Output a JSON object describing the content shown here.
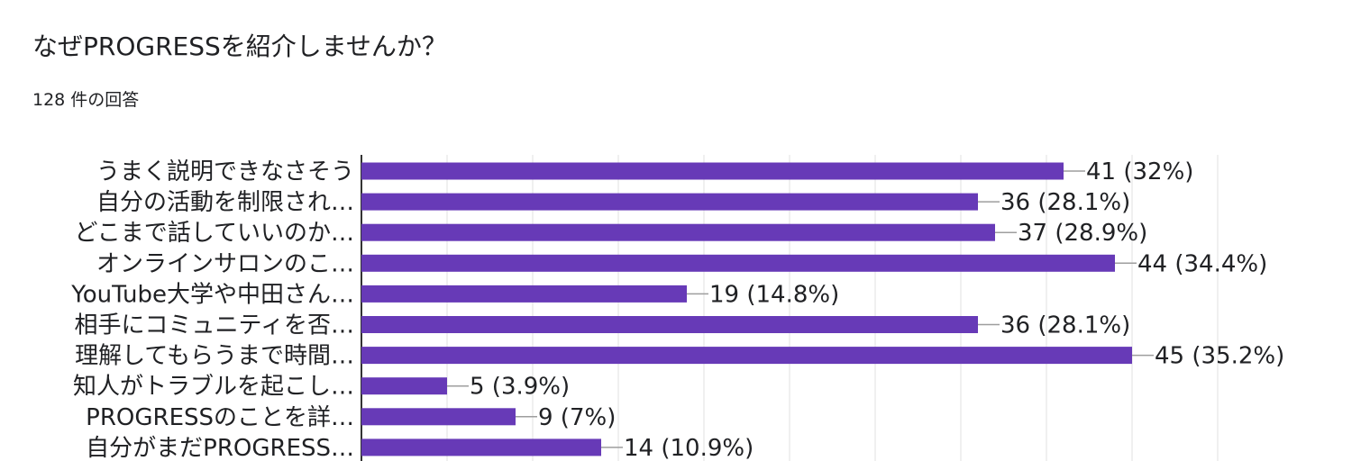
{
  "question": {
    "title": "なぜPROGRESSを紹介しませんか？",
    "response_count": "128 件の回答"
  },
  "colors": {
    "bar": "#673ab7",
    "grid": "#e0e0e0",
    "axis": "#333333",
    "leader": "#9e9e9e"
  },
  "chart_data": {
    "type": "bar",
    "orientation": "horizontal",
    "categories": [
      "うまく説明できなさそう",
      "自分の活動を制限され…",
      "どこまで話していいのか…",
      "オンラインサロンのこ…",
      "YouTube大学や中田さん…",
      "相手にコミュニティを否…",
      "理解してもらうまで時間…",
      "知人がトラブルを起こし…",
      "PROGRESSのことを詳…",
      "自分がまだPROGRESS…"
    ],
    "values": [
      41,
      36,
      37,
      44,
      19,
      36,
      45,
      5,
      9,
      14
    ],
    "value_labels": [
      "41 (32%)",
      "36 (28.1%)",
      "37 (28.9%)",
      "44 (34.4%)",
      "19 (14.8%)",
      "36 (28.1%)",
      "45 (35.2%)",
      "5 (3.9%)",
      "9 (7%)",
      "14 (10.9%)"
    ],
    "xlim": [
      0,
      50
    ],
    "grid": true,
    "legend": "none"
  }
}
